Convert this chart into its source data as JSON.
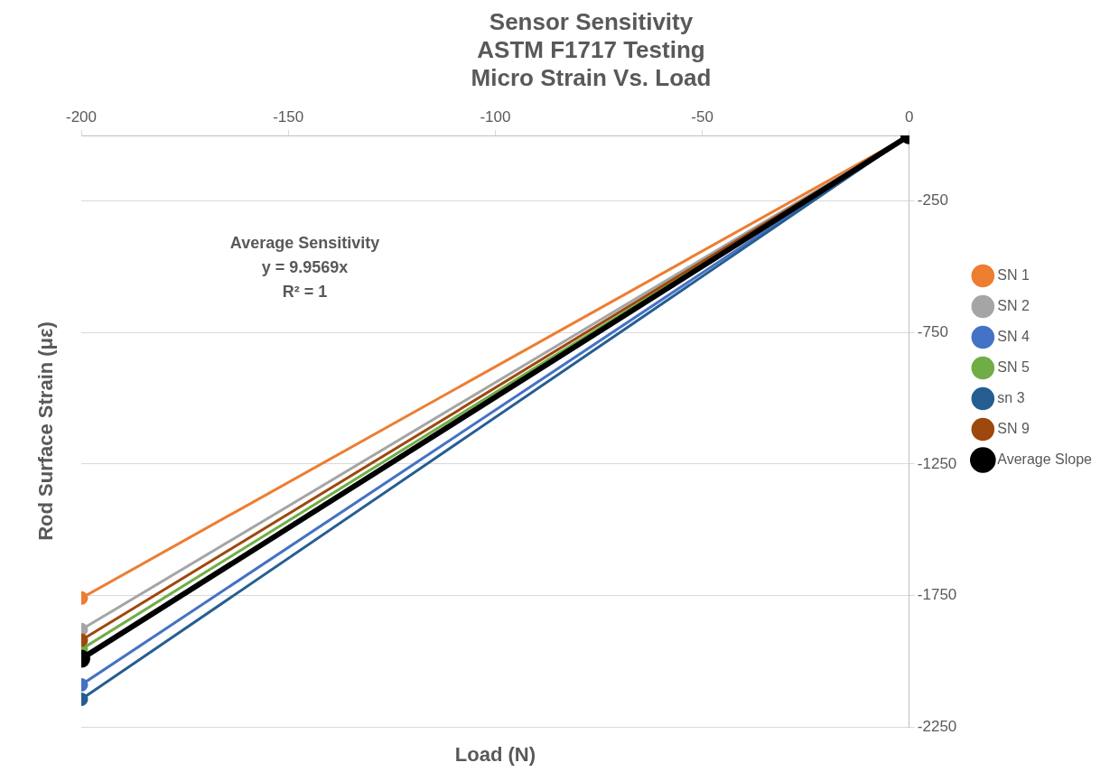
{
  "chart_data": {
    "type": "line",
    "title": "Sensor Sensitivity\nASTM F1717 Testing\nMicro Strain Vs. Load",
    "xlabel": "Load (N)",
    "ylabel": "Rod Surface Strain (με)",
    "x": [
      -200,
      0
    ],
    "series": [
      {
        "name": "SN 1",
        "color": "#ed7d31",
        "values": [
          -1760,
          0
        ]
      },
      {
        "name": "SN 2",
        "color": "#a5a5a5",
        "values": [
          -1880,
          0
        ]
      },
      {
        "name": "SN 4",
        "color": "#4472c4",
        "values": [
          -2090,
          0
        ]
      },
      {
        "name": "SN 5",
        "color": "#70ad47",
        "values": [
          -1955,
          0
        ]
      },
      {
        "name": "sn 3",
        "color": "#255e91",
        "values": [
          -2145,
          0
        ]
      },
      {
        "name": "SN 9",
        "color": "#9e480e",
        "values": [
          -1920,
          0
        ]
      },
      {
        "name": "Average Slope",
        "color": "#000000",
        "values": [
          -1991,
          0
        ]
      }
    ],
    "xlim": [
      -200,
      0
    ],
    "xticks": [
      -200,
      -150,
      -100,
      -50,
      0
    ],
    "ylim": [
      -2250,
      0
    ],
    "yticks": [
      -250,
      -750,
      -1250,
      -1750,
      -2250
    ],
    "annotations": [
      "Average Sensitivity\ny = 9.9569x\nR² = 1"
    ],
    "grid": "y",
    "legend": "right",
    "marker": "circle",
    "line_style": "solid"
  }
}
